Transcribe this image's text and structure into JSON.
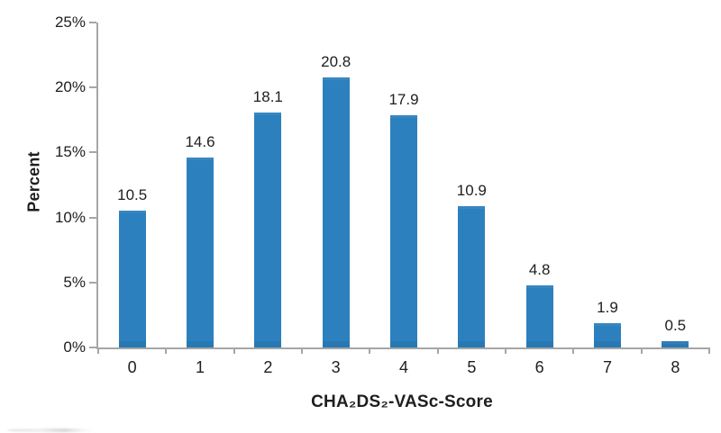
{
  "chart_data": {
    "type": "bar",
    "categories": [
      "0",
      "1",
      "2",
      "3",
      "4",
      "5",
      "6",
      "7",
      "8"
    ],
    "values": [
      10.5,
      14.6,
      18.1,
      20.8,
      17.9,
      10.9,
      4.8,
      1.9,
      0.5
    ],
    "data_labels": [
      "10.5",
      "14.6",
      "18.1",
      "20.8",
      "17.9",
      "10.9",
      "4.8",
      "1.9",
      "0.5"
    ],
    "title": "",
    "xlabel": "CHA₂DS₂-VASc-Score",
    "ylabel": "Percent",
    "ylim": [
      0,
      25
    ],
    "ytick_step": 5,
    "ytick_labels": [
      "0%",
      "5%",
      "10%",
      "15%",
      "20%",
      "25%"
    ],
    "grid": false,
    "legend": "none",
    "bar_color": "#2C80BE",
    "axis_color": "#A6A6A6",
    "text_color": "#1E1E1E"
  }
}
